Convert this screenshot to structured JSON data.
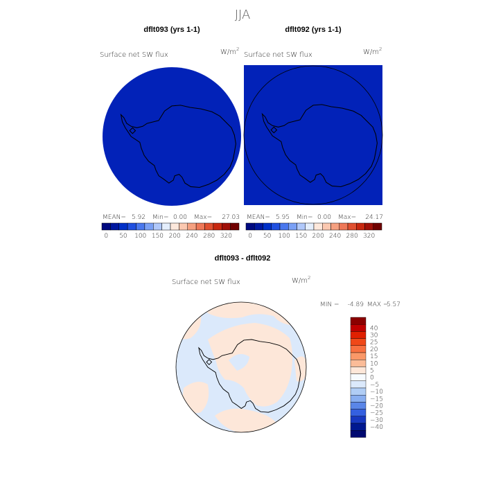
{
  "season": "JJA",
  "panels": [
    {
      "title": "dflt093 (yrs 1-1)",
      "variable": "Surface net SW flux",
      "units_base": "W/m",
      "units_exp": "2",
      "stats": {
        "mean_label": "MEAN=",
        "mean": "5.92",
        "min_label": "Min=",
        "min": "0.00",
        "max_label": "Max=",
        "max": "27.03"
      }
    },
    {
      "title": "dflt092 (yrs 1-1)",
      "variable": "Surface net SW flux",
      "units_base": "W/m",
      "units_exp": "2",
      "stats": {
        "mean_label": "MEAN=",
        "mean": "5.95",
        "min_label": "Min=",
        "min": "0.00",
        "max_label": "Max=",
        "max": "24.17"
      }
    }
  ],
  "abs_colorbar": {
    "colors": [
      "#000a80",
      "#0018a0",
      "#0030c8",
      "#2050e0",
      "#4a78ee",
      "#7aa0f5",
      "#b0c8fa",
      "#e4eefc",
      "#fde8dc",
      "#fbc8b0",
      "#f5a080",
      "#ee7858",
      "#e05030",
      "#c82810",
      "#a01008",
      "#700000"
    ],
    "labels": [
      "0",
      "50",
      "100",
      "150",
      "200",
      "240",
      "280",
      "320"
    ]
  },
  "map_fill_color": "#0222b8",
  "land_outline_color": "#000000",
  "diff": {
    "title": "dflt093 - dflt092",
    "variable": "Surface net SW flux",
    "units_base": "W/m",
    "units_exp": "2",
    "stats_text": {
      "min_label": "MIN =",
      "min": "-4.89",
      "max_label": "MAX =",
      "max": "5.57"
    },
    "positive_color": "#fde7d9",
    "negative_color": "#dbe9fb",
    "colorbar": {
      "colors": [
        "#8b0000",
        "#c00000",
        "#e02000",
        "#f04818",
        "#f87040",
        "#fa9868",
        "#fbbc98",
        "#fde7d9",
        "#f7fbff",
        "#dbe9fb",
        "#b0cdf5",
        "#88aef0",
        "#5a86e8",
        "#3560e0",
        "#1838c0",
        "#001890",
        "#000a70"
      ],
      "labels": [
        "40",
        "30",
        "25",
        "20",
        "15",
        "10",
        "5",
        "0",
        "−5",
        "−10",
        "−15",
        "−20",
        "−25",
        "−30",
        "−40"
      ]
    }
  }
}
